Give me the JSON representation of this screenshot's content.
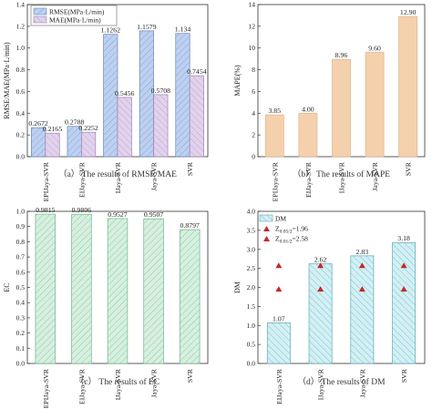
{
  "chart_data": [
    {
      "type": "bar",
      "caption": "（a） The results of RMSE/MAE",
      "ylabel": "RMSE/MAE(MPa·L/min)",
      "categories": [
        "EPIJaya-SVR",
        "EIJaya-SVR",
        "IJaya-SVR",
        "Jaya-SVR",
        "SVR"
      ],
      "series": [
        {
          "name": "RMSE(MPa·L/min)",
          "values": [
            0.2672,
            0.2788,
            1.1262,
            1.1579,
            1.134
          ],
          "labels": [
            "0.2672",
            "0.2788",
            "1.1262",
            "1.1579",
            "1.134"
          ],
          "color": "#b6c9ec",
          "hatch": "diag"
        },
        {
          "name": "MAE(MPa·L/min)",
          "values": [
            0.2165,
            0.2252,
            0.5456,
            0.5708,
            0.7454
          ],
          "labels": [
            "0.2165",
            "0.2252",
            "0.5456",
            "0.5708",
            "0.7454"
          ],
          "color": "#d9c6e4",
          "hatch": "cross"
        }
      ],
      "ylim": [
        0,
        1.4
      ],
      "yticks": [
        "0.0",
        "0.2",
        "0.4",
        "0.6",
        "0.8",
        "1.0",
        "1.2",
        "1.4"
      ],
      "legend": "top-left"
    },
    {
      "type": "bar",
      "caption": "（b） The results of MAPE",
      "ylabel": "MAPE(%)",
      "categories": [
        "EPIJaya-SVR",
        "EIJaya-SVR",
        "IJaya-SVR",
        "Jaya-SVR",
        "SVR"
      ],
      "series": [
        {
          "values": [
            3.85,
            4.0,
            8.96,
            9.6,
            12.9
          ],
          "labels": [
            "3.85",
            "4.00",
            "8.96",
            "9.60",
            "12.90"
          ],
          "color": "#f5d3b3"
        }
      ],
      "ylim": [
        0,
        14
      ],
      "yticks": [
        "0",
        "2",
        "4",
        "6",
        "8",
        "10",
        "12",
        "14"
      ]
    },
    {
      "type": "bar",
      "caption": "（c） The results of EC",
      "ylabel": "EC",
      "categories": [
        "EPIJaya-SVR",
        "EIJaya-SVR",
        "IJaya-SVR",
        "Jaya-SVR",
        "SVR"
      ],
      "series": [
        {
          "values": [
            0.9815,
            0.9806,
            0.9527,
            0.9507,
            0.8797
          ],
          "labels": [
            "0.9815",
            "0.9806",
            "0.9527",
            "0.9507",
            "0.8797"
          ],
          "color": "#cfeadb",
          "hatch": "diag-green"
        }
      ],
      "ylim": [
        0,
        1.0
      ],
      "yticks": [
        "0.0",
        "0.1",
        "0.2",
        "0.3",
        "0.4",
        "0.5",
        "0.6",
        "0.7",
        "0.8",
        "0.9",
        "1.0"
      ]
    },
    {
      "type": "bar",
      "caption": "（d） The results of DM",
      "ylabel": "DM",
      "categories": [
        "EIJaya-SVR",
        "IJaya-SVR",
        "Jaya-SVR",
        "SVR"
      ],
      "series": [
        {
          "name": "DM",
          "values": [
            1.07,
            2.62,
            2.83,
            3.18
          ],
          "labels": [
            "1.07",
            "2.62",
            "2.83",
            "3.18"
          ],
          "color": "#cfeef2",
          "hatch": "diag-cyan"
        }
      ],
      "markers": [
        {
          "name": "Z_{0.05/2}=1.96",
          "value": 1.96,
          "color": "#c62828"
        },
        {
          "name": "Z_{0.01/2}=2.58",
          "value": 2.58,
          "color": "#c62828"
        }
      ],
      "ylim": [
        0,
        4.0
      ],
      "yticks": [
        "0.0",
        "0.5",
        "1.0",
        "1.5",
        "2.0",
        "2.5",
        "3.0",
        "3.5",
        "4.0"
      ],
      "legend": "top-left"
    }
  ],
  "legend_text": {
    "rmse": "RMSE(MPa·L/min)",
    "mae": "MAE(MPa·L/min)",
    "dm": "DM",
    "z1_base": "Z",
    "z1_sub": "0.05/2",
    "z1_rest": "=1.96",
    "z2_base": "Z",
    "z2_sub": "0.01/2",
    "z2_rest": "=2.58"
  }
}
